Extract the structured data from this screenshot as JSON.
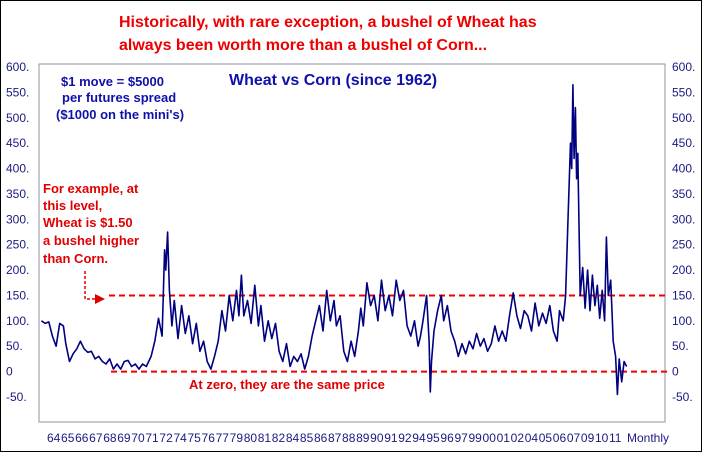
{
  "headline": [
    "Historically, with rare exception, a bushel of Wheat has",
    "always been worth more than a bushel of Corn..."
  ],
  "chart_data": {
    "type": "line",
    "title": "Wheat vs Corn (since 1962)",
    "x_label": "Monthly",
    "ylim": [
      -75,
      610
    ],
    "y_ticks": [
      "600.",
      "550.",
      "500.",
      "450.",
      "400.",
      "350.",
      "300.",
      "250.",
      "200.",
      "150.",
      "100.",
      "50.",
      "0",
      "-50."
    ],
    "y_tick_values": [
      600,
      550,
      500,
      450,
      400,
      350,
      300,
      250,
      200,
      150,
      100,
      50,
      0,
      -50
    ],
    "x_ticks": [
      "64",
      "65",
      "66",
      "67",
      "68",
      "69",
      "70",
      "71",
      "72",
      "74",
      "75",
      "76",
      "77",
      "79",
      "80",
      "81",
      "82",
      "84",
      "85",
      "86",
      "87",
      "88",
      "89",
      "90",
      "91",
      "92",
      "94",
      "95",
      "96",
      "97",
      "99",
      "00",
      "01",
      "02",
      "04",
      "05",
      "06",
      "07",
      "09",
      "10",
      "11"
    ],
    "series": [
      {
        "color": "#000080",
        "points": [
          [
            1964.0,
            100
          ],
          [
            1964.3,
            95
          ],
          [
            1964.6,
            98
          ],
          [
            1964.9,
            70
          ],
          [
            1965.2,
            50
          ],
          [
            1965.5,
            95
          ],
          [
            1965.8,
            90
          ],
          [
            1966.0,
            55
          ],
          [
            1966.3,
            20
          ],
          [
            1966.6,
            35
          ],
          [
            1966.9,
            45
          ],
          [
            1967.2,
            60
          ],
          [
            1967.5,
            45
          ],
          [
            1967.8,
            38
          ],
          [
            1968.1,
            40
          ],
          [
            1968.4,
            25
          ],
          [
            1968.7,
            30
          ],
          [
            1969.0,
            20
          ],
          [
            1969.3,
            15
          ],
          [
            1969.6,
            25
          ],
          [
            1969.9,
            5
          ],
          [
            1970.2,
            15
          ],
          [
            1970.5,
            5
          ],
          [
            1970.8,
            20
          ],
          [
            1971.1,
            22
          ],
          [
            1971.4,
            10
          ],
          [
            1971.7,
            15
          ],
          [
            1972.0,
            5
          ],
          [
            1972.3,
            15
          ],
          [
            1972.6,
            10
          ],
          [
            1973.0,
            30
          ],
          [
            1973.3,
            60
          ],
          [
            1973.6,
            105
          ],
          [
            1973.9,
            70
          ],
          [
            1974.1,
            240
          ],
          [
            1974.2,
            200
          ],
          [
            1974.35,
            275
          ],
          [
            1974.5,
            160
          ],
          [
            1974.7,
            90
          ],
          [
            1974.9,
            140
          ],
          [
            1975.2,
            65
          ],
          [
            1975.5,
            130
          ],
          [
            1975.8,
            75
          ],
          [
            1976.1,
            110
          ],
          [
            1976.4,
            55
          ],
          [
            1976.7,
            95
          ],
          [
            1977.0,
            40
          ],
          [
            1977.3,
            60
          ],
          [
            1977.6,
            20
          ],
          [
            1977.9,
            5
          ],
          [
            1978.2,
            30
          ],
          [
            1978.5,
            60
          ],
          [
            1978.8,
            120
          ],
          [
            1979.1,
            80
          ],
          [
            1979.4,
            150
          ],
          [
            1979.7,
            100
          ],
          [
            1980.0,
            160
          ],
          [
            1980.2,
            110
          ],
          [
            1980.4,
            190
          ],
          [
            1980.6,
            110
          ],
          [
            1980.9,
            140
          ],
          [
            1981.2,
            95
          ],
          [
            1981.5,
            170
          ],
          [
            1981.8,
            90
          ],
          [
            1982.0,
            130
          ],
          [
            1982.3,
            60
          ],
          [
            1982.6,
            100
          ],
          [
            1982.9,
            65
          ],
          [
            1983.2,
            95
          ],
          [
            1983.5,
            40
          ],
          [
            1983.8,
            20
          ],
          [
            1984.1,
            55
          ],
          [
            1984.4,
            10
          ],
          [
            1984.7,
            30
          ],
          [
            1985.0,
            20
          ],
          [
            1985.3,
            35
          ],
          [
            1985.6,
            5
          ],
          [
            1985.9,
            30
          ],
          [
            1986.2,
            70
          ],
          [
            1986.5,
            100
          ],
          [
            1986.8,
            130
          ],
          [
            1987.1,
            80
          ],
          [
            1987.4,
            160
          ],
          [
            1987.7,
            100
          ],
          [
            1988.0,
            140
          ],
          [
            1988.2,
            90
          ],
          [
            1988.5,
            110
          ],
          [
            1988.8,
            40
          ],
          [
            1989.1,
            20
          ],
          [
            1989.4,
            60
          ],
          [
            1989.7,
            30
          ],
          [
            1990.0,
            80
          ],
          [
            1990.2,
            125
          ],
          [
            1990.4,
            90
          ],
          [
            1990.7,
            175
          ],
          [
            1991.0,
            130
          ],
          [
            1991.3,
            150
          ],
          [
            1991.6,
            100
          ],
          [
            1991.9,
            180
          ],
          [
            1992.2,
            120
          ],
          [
            1992.5,
            150
          ],
          [
            1992.8,
            110
          ],
          [
            1993.1,
            180
          ],
          [
            1993.4,
            140
          ],
          [
            1993.7,
            160
          ],
          [
            1994.0,
            90
          ],
          [
            1994.3,
            70
          ],
          [
            1994.6,
            100
          ],
          [
            1994.9,
            50
          ],
          [
            1995.1,
            70
          ],
          [
            1995.3,
            100
          ],
          [
            1995.6,
            150
          ],
          [
            1995.8,
            60
          ],
          [
            1995.9,
            -40
          ],
          [
            1996.0,
            20
          ],
          [
            1996.2,
            80
          ],
          [
            1996.5,
            120
          ],
          [
            1996.8,
            150
          ],
          [
            1997.0,
            100
          ],
          [
            1997.3,
            130
          ],
          [
            1997.6,
            80
          ],
          [
            1997.9,
            60
          ],
          [
            1998.2,
            30
          ],
          [
            1998.5,
            55
          ],
          [
            1998.8,
            35
          ],
          [
            1999.1,
            60
          ],
          [
            1999.4,
            45
          ],
          [
            1999.7,
            75
          ],
          [
            2000.0,
            50
          ],
          [
            2000.3,
            65
          ],
          [
            2000.6,
            40
          ],
          [
            2000.9,
            55
          ],
          [
            2001.2,
            90
          ],
          [
            2001.5,
            60
          ],
          [
            2001.8,
            80
          ],
          [
            2002.1,
            60
          ],
          [
            2002.4,
            110
          ],
          [
            2002.7,
            155
          ],
          [
            2003.0,
            110
          ],
          [
            2003.3,
            85
          ],
          [
            2003.6,
            120
          ],
          [
            2003.9,
            110
          ],
          [
            2004.2,
            80
          ],
          [
            2004.5,
            135
          ],
          [
            2004.8,
            90
          ],
          [
            2005.1,
            115
          ],
          [
            2005.4,
            95
          ],
          [
            2005.7,
            130
          ],
          [
            2006.0,
            80
          ],
          [
            2006.3,
            60
          ],
          [
            2006.5,
            120
          ],
          [
            2006.8,
            100
          ],
          [
            2007.0,
            150
          ],
          [
            2007.2,
            300
          ],
          [
            2007.4,
            450
          ],
          [
            2007.5,
            400
          ],
          [
            2007.6,
            565
          ],
          [
            2007.7,
            420
          ],
          [
            2007.8,
            520
          ],
          [
            2007.9,
            380
          ],
          [
            2008.0,
            430
          ],
          [
            2008.2,
            150
          ],
          [
            2008.4,
            205
          ],
          [
            2008.6,
            125
          ],
          [
            2008.8,
            200
          ],
          [
            2009.0,
            120
          ],
          [
            2009.2,
            190
          ],
          [
            2009.4,
            130
          ],
          [
            2009.6,
            170
          ],
          [
            2009.8,
            105
          ],
          [
            2010.0,
            160
          ],
          [
            2010.2,
            100
          ],
          [
            2010.35,
            265
          ],
          [
            2010.5,
            150
          ],
          [
            2010.7,
            180
          ],
          [
            2010.9,
            60
          ],
          [
            2011.1,
            30
          ],
          [
            2011.25,
            -45
          ],
          [
            2011.4,
            25
          ],
          [
            2011.6,
            -20
          ],
          [
            2011.8,
            20
          ],
          [
            2012.0,
            10
          ]
        ]
      }
    ],
    "reference_lines": [
      150,
      0
    ],
    "annotations": {
      "spread_note": [
        "$1 move = $5000",
        "per futures spread",
        "($1000 on the mini's)"
      ],
      "example_note": [
        "For example, at",
        "this level,",
        "Wheat is $1.50",
        "a bushel higher",
        "than Corn."
      ],
      "zero_note": "At zero, they are the same price"
    },
    "colors": {
      "line": "#000080",
      "reference": "#ee0000",
      "headline": "#ee0000",
      "title": "#1010aa"
    }
  }
}
